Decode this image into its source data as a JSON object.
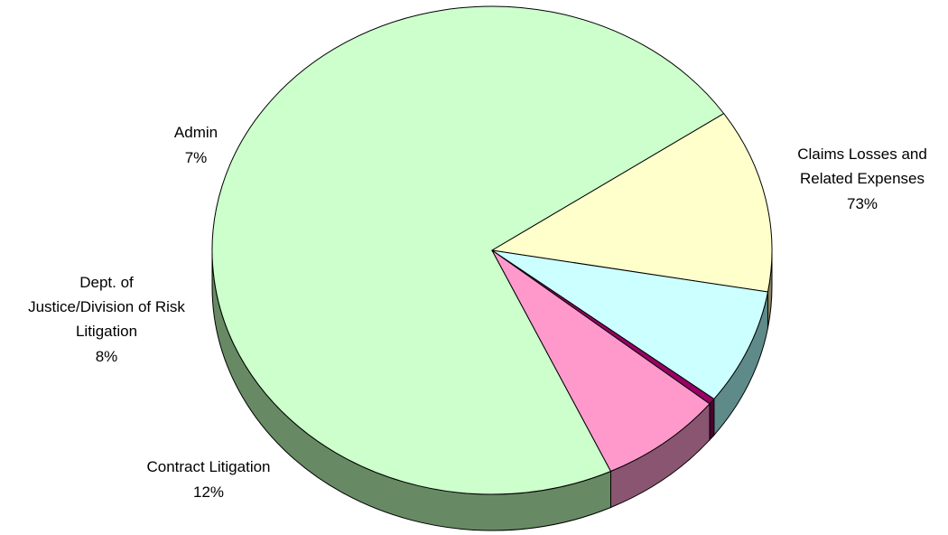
{
  "chart_data": {
    "type": "pie",
    "slices": [
      {
        "label": "Claims Losses and Related Expenses",
        "pct_label": "73%",
        "value": 72.5,
        "color": "#ccffcc",
        "side_color": "#678a64"
      },
      {
        "label": "Contract Litigation",
        "pct_label": "12%",
        "value": 12.2,
        "color": "#ffffcc",
        "side_color": "#8a8460"
      },
      {
        "label": "Dept. of Justice/Division of Risk Litigation",
        "pct_label": "8%",
        "value": 7.7,
        "color": "#ccffff",
        "side_color": "#5f8a8a"
      },
      {
        "label": "",
        "pct_label": "",
        "value": 0.4,
        "color": "#990066",
        "side_color": "#4d0033"
      },
      {
        "label": "Admin",
        "pct_label": "7%",
        "value": 7.2,
        "color": "#ff99cc",
        "side_color": "#8a5570"
      }
    ]
  },
  "labels": {
    "claims": {
      "line1": "Claims Losses and",
      "line2": "Related Expenses",
      "pct": "73%"
    },
    "contract": {
      "line1": "Contract Litigation",
      "pct": "12%"
    },
    "justice": {
      "line1": "Dept. of",
      "line2": "Justice/Division of Risk",
      "line3": "Litigation",
      "pct": "8%"
    },
    "admin": {
      "line1": "Admin",
      "pct": "7%"
    }
  }
}
